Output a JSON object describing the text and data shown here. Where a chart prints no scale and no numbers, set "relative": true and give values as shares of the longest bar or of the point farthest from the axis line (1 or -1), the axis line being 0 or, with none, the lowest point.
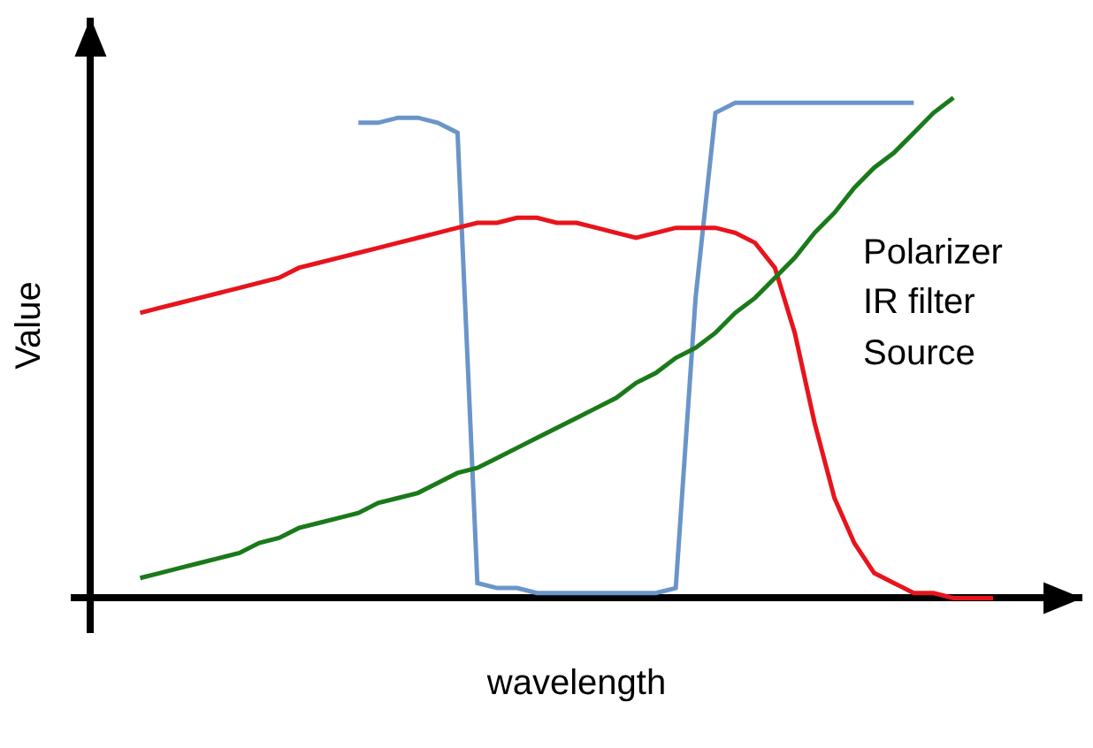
{
  "chart_data": {
    "type": "line",
    "relative": true,
    "xlabel": "wavelength",
    "ylabel": "Value",
    "annotations": [
      "Polarizer",
      "IR filter",
      "Source"
    ],
    "marker": "none",
    "line_style": "solid",
    "categories": [
      null,
      null,
      null,
      null,
      null,
      null,
      null,
      null,
      null,
      null,
      null,
      null,
      null,
      null,
      null,
      null,
      null,
      null,
      null,
      null,
      null,
      null,
      null,
      null,
      null,
      null,
      null,
      null,
      null,
      null,
      null,
      null,
      null,
      null,
      null,
      null,
      null,
      null,
      null,
      null,
      null,
      null,
      null,
      null
    ],
    "series": [
      {
        "color": "#6a95c9",
        "values": [
          null,
          null,
          null,
          null,
          null,
          null,
          null,
          null,
          null,
          null,
          null,
          0.95,
          0.95,
          0.96,
          0.96,
          0.95,
          0.93,
          0.03,
          0.02,
          0.02,
          0.01,
          0.01,
          0.01,
          0.01,
          0.01,
          0.01,
          0.01,
          0.02,
          0.6,
          0.97,
          0.99,
          0.99,
          0.99,
          0.99,
          0.99,
          0.99,
          0.99,
          0.99,
          0.99,
          0.99,
          null,
          null,
          null,
          null
        ]
      },
      {
        "color": "#e8141c",
        "values": [
          0.57,
          0.58,
          0.59,
          0.6,
          0.61,
          0.62,
          0.63,
          0.64,
          0.66,
          0.67,
          0.68,
          0.69,
          0.7,
          0.71,
          0.72,
          0.73,
          0.74,
          0.75,
          0.75,
          0.76,
          0.76,
          0.75,
          0.75,
          0.74,
          0.73,
          0.72,
          0.73,
          0.74,
          0.74,
          0.74,
          0.73,
          0.71,
          0.66,
          0.53,
          0.35,
          0.2,
          0.11,
          0.05,
          0.03,
          0.01,
          0.01,
          0.0,
          0.0,
          0.0
        ]
      },
      {
        "color": "#1a7a1a",
        "values": [
          0.04,
          0.05,
          0.06,
          0.07,
          0.08,
          0.09,
          0.11,
          0.12,
          0.14,
          0.15,
          0.16,
          0.17,
          0.19,
          0.2,
          0.21,
          0.23,
          0.25,
          0.26,
          0.28,
          0.3,
          0.32,
          0.34,
          0.36,
          0.38,
          0.4,
          0.43,
          0.45,
          0.48,
          0.5,
          0.53,
          0.57,
          0.6,
          0.64,
          0.68,
          0.73,
          0.77,
          0.82,
          0.86,
          0.89,
          0.93,
          0.97,
          1.0,
          null,
          null
        ]
      }
    ]
  }
}
